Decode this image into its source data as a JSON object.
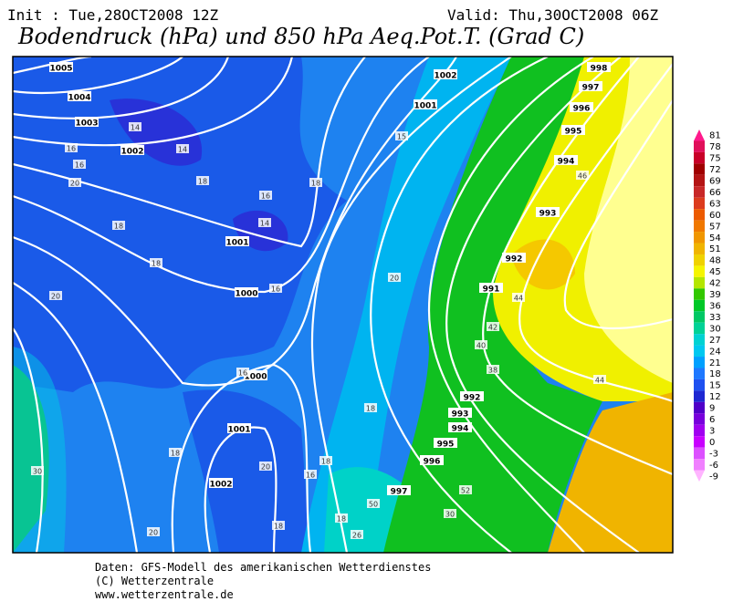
{
  "header": {
    "init": "Init : Tue,28OCT2008 12Z",
    "valid": "Valid: Thu,30OCT2008 06Z",
    "title": "Bodendruck (hPa) und 850 hPa Aeq.Pot.T. (Grad C)"
  },
  "colorbar": {
    "ticks": [
      81,
      78,
      75,
      72,
      69,
      66,
      63,
      60,
      57,
      54,
      51,
      48,
      45,
      42,
      39,
      36,
      33,
      30,
      27,
      24,
      21,
      18,
      15,
      12,
      9,
      6,
      3,
      0,
      -3,
      -6,
      -9
    ],
    "colors": [
      "#ff1a8c",
      "#e0105a",
      "#c80028",
      "#a00000",
      "#b41414",
      "#c82828",
      "#dc3c1e",
      "#ec5a00",
      "#f07800",
      "#f09600",
      "#f0b400",
      "#f0d200",
      "#f5f500",
      "#b4e600",
      "#32c800",
      "#00c828",
      "#00c864",
      "#00d296",
      "#00d2d2",
      "#00c8f0",
      "#00a0ff",
      "#1e78ff",
      "#1e50f0",
      "#1e28d2",
      "#5000c8",
      "#7800dc",
      "#a000f0",
      "#c800ff",
      "#dc50ff",
      "#f080ff",
      "#ffb4ff"
    ]
  },
  "isobar_labels": [
    1005,
    1004,
    1003,
    1002,
    1001,
    1000,
    1002,
    1001,
    998,
    997,
    996,
    995,
    994,
    993,
    992,
    991,
    992,
    993,
    994,
    995,
    996,
    997,
    1000,
    1001,
    1002
  ],
  "theta_labels": [
    14,
    14,
    16,
    16,
    18,
    16,
    14,
    18,
    16,
    18,
    18,
    20,
    20,
    16,
    18,
    18,
    20,
    16,
    18,
    20,
    15,
    46,
    44,
    42,
    40,
    38,
    44,
    50,
    52,
    30,
    30,
    26,
    18,
    20,
    18
  ],
  "footer": [
    "Daten: GFS-Modell des amerikanischen Wetterdienstes",
    "(C) Wetterzentrale",
    "www.wetterzentrale.de"
  ]
}
